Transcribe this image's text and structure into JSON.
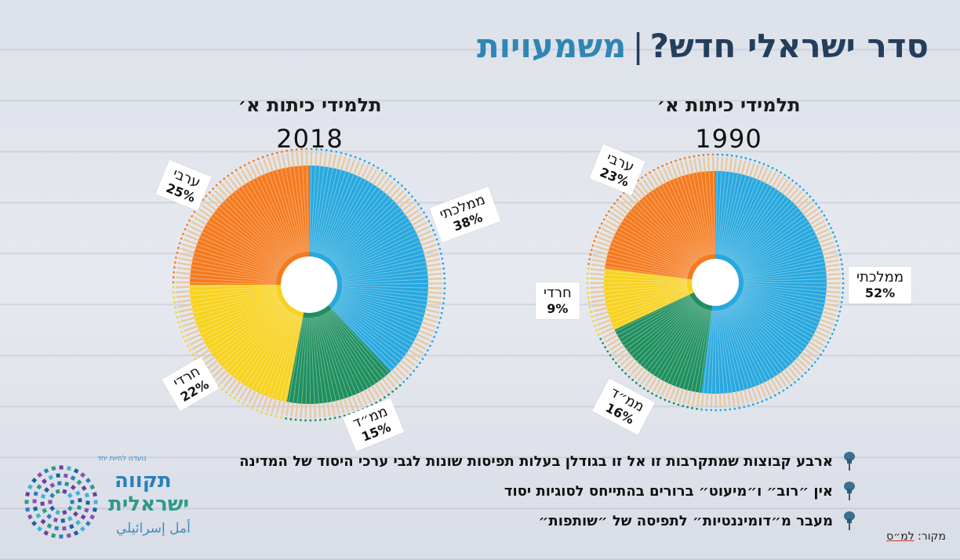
{
  "title": {
    "main": "סדר ישראלי חדש?",
    "separator": "|",
    "accent": "משמעויות"
  },
  "chart_data": [
    {
      "type": "pie",
      "title": "תלמידי כיתות א׳",
      "subtitle": "1990",
      "slices": [
        {
          "name": "ממלכתי",
          "value": 52,
          "label": "52%",
          "color": "#29a8de"
        },
        {
          "name": "ממ״ד",
          "value": 16,
          "label": "16%",
          "color": "#1f8f5f"
        },
        {
          "name": "חרדי",
          "value": 9,
          "label": "9%",
          "color": "#f7d21f"
        },
        {
          "name": "ערבי",
          "value": 23,
          "label": "23%",
          "color": "#f47b20"
        }
      ]
    },
    {
      "type": "pie",
      "title": "תלמידי כיתות א׳",
      "subtitle": "2018",
      "slices": [
        {
          "name": "ממלכתי",
          "value": 38,
          "label": "38%",
          "color": "#29a8de"
        },
        {
          "name": "ממ״ד",
          "value": 15,
          "label": "15%",
          "color": "#1f8f5f"
        },
        {
          "name": "חרדי",
          "value": 22,
          "label": "22%",
          "color": "#f7d21f"
        },
        {
          "name": "ערבי",
          "value": 25,
          "label": "25%",
          "color": "#f47b20"
        }
      ]
    }
  ],
  "bullets": [
    "ארבע קבוצות שמתקרבות זו אל זו בגודלן בעלות תפיסות שונות לגבי ערכי היסוד של המדינה",
    "אין ״רוב״ ו״מיעוט״ ברורים בהתייחס לסוגיות יסוד",
    "מעבר מ״דומיננטיות״ לתפיסה של ״שותפות״"
  ],
  "source": {
    "label": "מקור:",
    "value": "למ״ס"
  },
  "logo": {
    "line1": "תקווה",
    "line2": "ישראלית",
    "line3": "أمل إسرائيلي",
    "tagline": "נועדנו לחיות יחד",
    "icon": "pencil-dots-circle-icon"
  },
  "icons": {
    "bullet": "pushpin-icon"
  }
}
